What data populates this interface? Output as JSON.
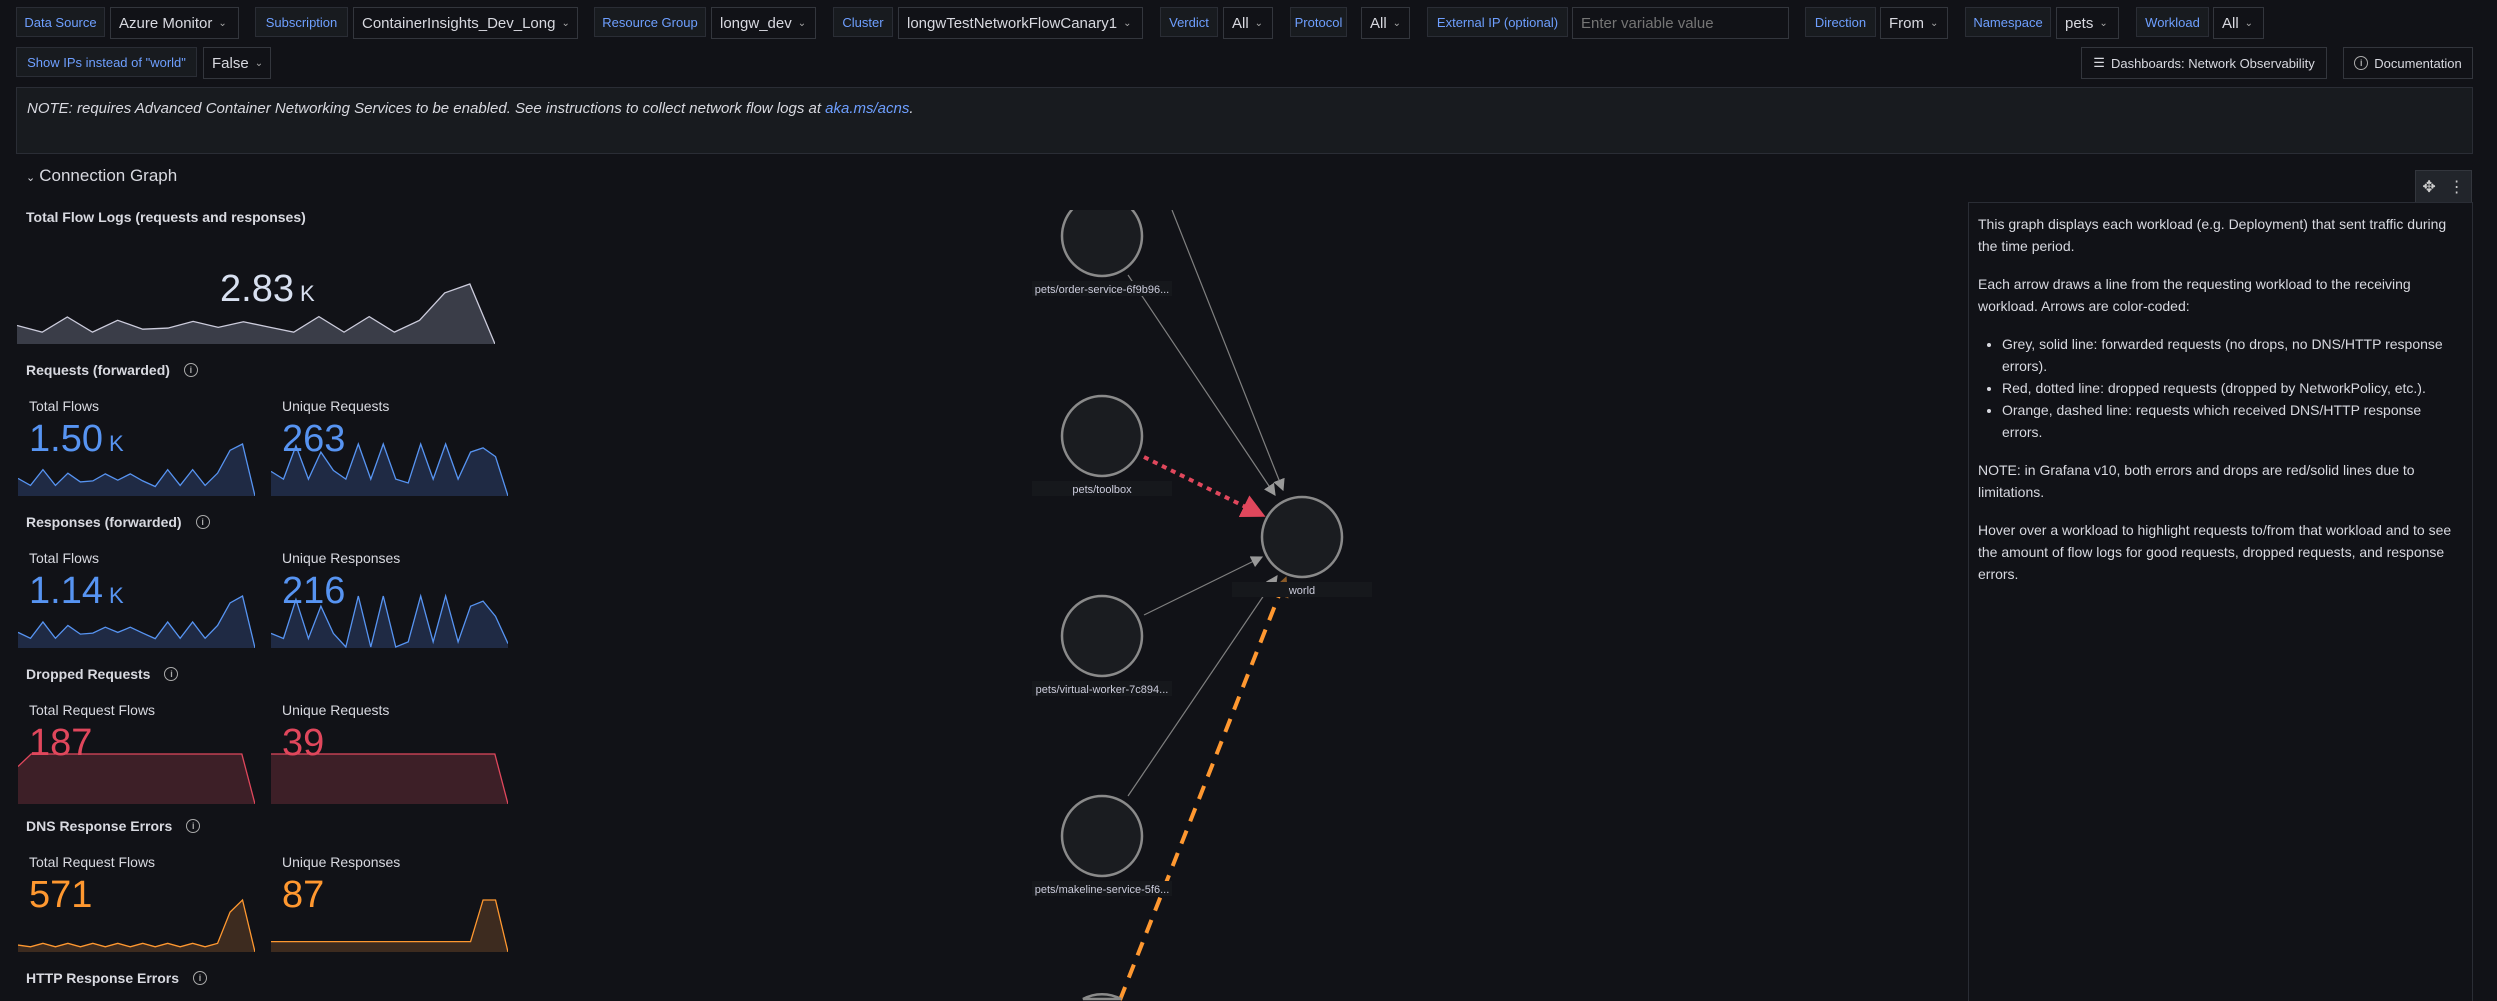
{
  "variables": {
    "row1": [
      {
        "label": "Data Source",
        "value": "Azure Monitor"
      },
      {
        "label": "Subscription",
        "value": "ContainerInsights_Dev_Long"
      },
      {
        "label": "Resource Group",
        "value": "longw_dev"
      },
      {
        "label": "Cluster",
        "value": "longwTestNetworkFlowCanary1"
      },
      {
        "label": "Verdict",
        "value": "All"
      },
      {
        "label": "Protocol",
        "value": "All"
      },
      {
        "label": "External IP (optional)",
        "placeholder": "Enter variable value"
      },
      {
        "label": "Direction",
        "value": "From"
      },
      {
        "label": "Namespace",
        "value": "pets"
      },
      {
        "label": "Workload",
        "value": "All"
      }
    ],
    "row2": [
      {
        "label": "Show IPs instead of \"world\"",
        "value": "False"
      }
    ]
  },
  "links": {
    "dashboards": "Dashboards: Network Observability",
    "documentation": "Documentation"
  },
  "note": {
    "text": "NOTE: requires Advanced Container Networking Services to be enabled. See instructions to collect network flow logs at ",
    "link": "aka.ms/acns",
    "suffix": "."
  },
  "section": {
    "title": "Connection Graph"
  },
  "panels": {
    "total": {
      "title": "Total Flow Logs (requests and responses)",
      "value": "2.83",
      "unit": "K",
      "trend": [
        50,
        32,
        73,
        32,
        64,
        40,
        43,
        61,
        45,
        60,
        46,
        32,
        74,
        32,
        74,
        32,
        64,
        138,
        162,
        0
      ]
    },
    "requests": {
      "title": "Requests (forwarded)",
      "stats": [
        {
          "label": "Total Flows",
          "value": "1.50",
          "unit": "K",
          "trend": [
            50,
            30,
            75,
            30,
            65,
            40,
            43,
            63,
            45,
            63,
            43,
            27,
            75,
            30,
            75,
            30,
            65,
            130,
            148,
            0
          ]
        },
        {
          "label": "Unique Requests",
          "value": "263",
          "unit": "",
          "trend": [
            70,
            48,
            143,
            48,
            125,
            73,
            48,
            148,
            48,
            148,
            48,
            37,
            148,
            48,
            148,
            48,
            125,
            137,
            112,
            0
          ]
        }
      ]
    },
    "responses": {
      "title": "Responses (forwarded)",
      "stats": [
        {
          "label": "Total Flows",
          "value": "1.14",
          "unit": "K",
          "trend": [
            45,
            28,
            75,
            28,
            65,
            40,
            43,
            60,
            45,
            60,
            43,
            27,
            75,
            28,
            75,
            28,
            65,
            130,
            150,
            0
          ]
        },
        {
          "label": "Unique Responses",
          "value": "216",
          "unit": "",
          "trend": [
            43,
            28,
            143,
            28,
            123,
            43,
            3,
            153,
            3,
            153,
            3,
            18,
            153,
            18,
            153,
            18,
            123,
            138,
            93,
            13
          ]
        }
      ]
    },
    "dropped": {
      "title": "Dropped Requests",
      "stats": [
        {
          "label": "Total Request Flows",
          "value": "187",
          "unit": "",
          "trend": [
            75,
            100,
            100,
            100,
            100,
            100,
            100,
            100,
            100,
            100,
            100,
            100,
            100,
            100,
            100,
            100,
            100,
            100,
            0
          ]
        },
        {
          "label": "Unique Requests",
          "value": "39",
          "unit": "",
          "trend": [
            100,
            100,
            100,
            100,
            100,
            100,
            100,
            100,
            100,
            100,
            100,
            100,
            100,
            100,
            100,
            100,
            100,
            100,
            0
          ]
        }
      ]
    },
    "dns": {
      "title": "DNS Response Errors",
      "stats": [
        {
          "label": "Total Request Flows",
          "value": "571",
          "unit": "",
          "trend": [
            20,
            15,
            25,
            15,
            25,
            15,
            25,
            15,
            25,
            15,
            25,
            15,
            25,
            15,
            25,
            15,
            25,
            115,
            150,
            0
          ]
        },
        {
          "label": "Unique Responses",
          "value": "87",
          "unit": "",
          "trend": [
            30,
            30,
            30,
            30,
            30,
            30,
            30,
            30,
            30,
            30,
            30,
            30,
            30,
            30,
            30,
            30,
            30,
            150,
            150,
            0
          ]
        }
      ]
    },
    "http": {
      "title": "HTTP Response Errors"
    }
  },
  "colors": {
    "grey": "#ccccdc",
    "blue": "#5794f2",
    "red": "#e0475c",
    "orange": "#ff9830"
  },
  "graph": {
    "nodes": [
      "pets/order-service-6f9b96...",
      "pets/toolbox",
      "world",
      "pets/virtual-worker-7c894...",
      "pets/makeline-service-5f6..."
    ],
    "edges": [
      {
        "from": "offscreen-top",
        "to": "world",
        "type": "forwarded"
      },
      {
        "from": "pets/order-service-6f9b96...",
        "to": "world",
        "type": "forwarded"
      },
      {
        "from": "pets/toolbox",
        "to": "world",
        "type": "dropped"
      },
      {
        "from": "pets/virtual-worker-7c894...",
        "to": "world",
        "type": "forwarded"
      },
      {
        "from": "pets/makeline-service-5f6...",
        "to": "world",
        "type": "forwarded"
      },
      {
        "from": "offscreen-bottom",
        "to": "world",
        "type": "error"
      }
    ]
  },
  "description": {
    "p1": "This graph displays each workload (e.g. Deployment) that sent traffic during the time period.",
    "p2": "Each arrow draws a line from the requesting workload to the receiving workload. Arrows are color-coded:",
    "bullets": [
      "Grey, solid line: forwarded requests (no drops, no DNS/HTTP response errors).",
      "Red, dotted line: dropped requests (dropped by NetworkPolicy, etc.).",
      "Orange, dashed line: requests which received DNS/HTTP response errors."
    ],
    "p3": "NOTE: in Grafana v10, both errors and drops are red/solid lines due to limitations.",
    "p4": "Hover over a workload to highlight requests to/from that workload and to see the amount of flow logs for good requests, dropped requests, and response errors."
  }
}
